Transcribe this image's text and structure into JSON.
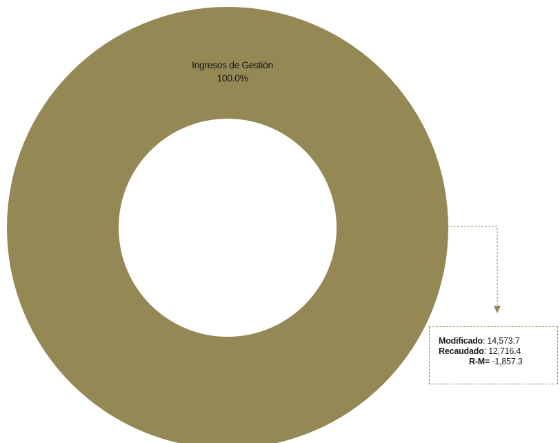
{
  "chart_data": {
    "type": "pie",
    "style": "donut",
    "slices": [
      {
        "label": "Ingresos de Gestión",
        "value": 100.0,
        "percent_label": "100.0%"
      }
    ],
    "colors": {
      "slice": "#948855",
      "connector": "#8f8454"
    }
  },
  "callout": {
    "modificado_label": "Modificado",
    "modificado_value": ": 14,573.7",
    "recaudado_label": "Recaudado",
    "recaudado_value": ": 12,716.4",
    "rm_label": "R-M=",
    "rm_value": " -1,857.3"
  }
}
